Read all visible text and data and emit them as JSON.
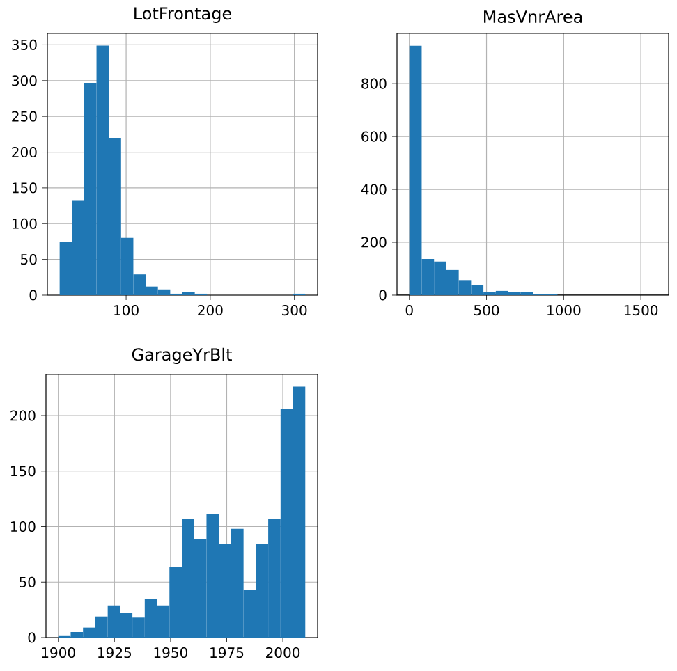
{
  "chart_data": [
    {
      "type": "histogram",
      "title": "LotFrontage",
      "color": "#1f77b4",
      "grid": true,
      "bins": [
        21,
        35.6,
        50.2,
        64.8,
        79.4,
        94,
        108.6,
        123.2,
        137.8,
        152.4,
        167,
        181.6,
        196.2,
        210.8,
        225.4,
        240,
        254.6,
        269.2,
        283.8,
        298.4,
        313
      ],
      "values": [
        74,
        132,
        297,
        349,
        220,
        80,
        29,
        12,
        8,
        2,
        4,
        2,
        0,
        0,
        0,
        0,
        0,
        0,
        0,
        2
      ],
      "xlim": [
        6.4,
        327.6
      ],
      "ylim": [
        0,
        366
      ],
      "xticks": [
        100,
        200,
        300
      ],
      "yticks": [
        0,
        50,
        100,
        150,
        200,
        250,
        300,
        350
      ]
    },
    {
      "type": "histogram",
      "title": "MasVnrArea",
      "color": "#1f77b4",
      "grid": true,
      "bins": [
        0,
        80,
        160,
        240,
        320,
        400,
        480,
        560,
        640,
        720,
        800,
        880,
        960,
        1040,
        1120,
        1200,
        1280,
        1360,
        1440,
        1520,
        1600
      ],
      "values": [
        943,
        137,
        127,
        95,
        57,
        37,
        11,
        16,
        12,
        12,
        5,
        5,
        0,
        0,
        0,
        0,
        0,
        0,
        0,
        0
      ],
      "xlim": [
        -80,
        1680
      ],
      "ylim": [
        0,
        990
      ],
      "xticks": [
        0,
        500,
        1000,
        1500
      ],
      "yticks": [
        0,
        200,
        400,
        600,
        800
      ]
    },
    {
      "type": "histogram",
      "title": "GarageYrBlt",
      "color": "#1f77b4",
      "grid": true,
      "bins": [
        1900,
        1905.5,
        1911,
        1916.5,
        1922,
        1927.5,
        1933,
        1938.5,
        1944,
        1949.5,
        1955,
        1960.5,
        1966,
        1971.5,
        1977,
        1982.5,
        1988,
        1993.5,
        1999,
        2004.5,
        2010
      ],
      "values": [
        2,
        5,
        9,
        19,
        29,
        22,
        18,
        35,
        29,
        64,
        107,
        89,
        111,
        84,
        98,
        43,
        84,
        107,
        206,
        226
      ],
      "xlim": [
        1894.5,
        2015.5
      ],
      "ylim": [
        0,
        237
      ],
      "xticks": [
        1900,
        1925,
        1950,
        1975,
        2000
      ],
      "yticks": [
        0,
        50,
        100,
        150,
        200
      ]
    }
  ]
}
